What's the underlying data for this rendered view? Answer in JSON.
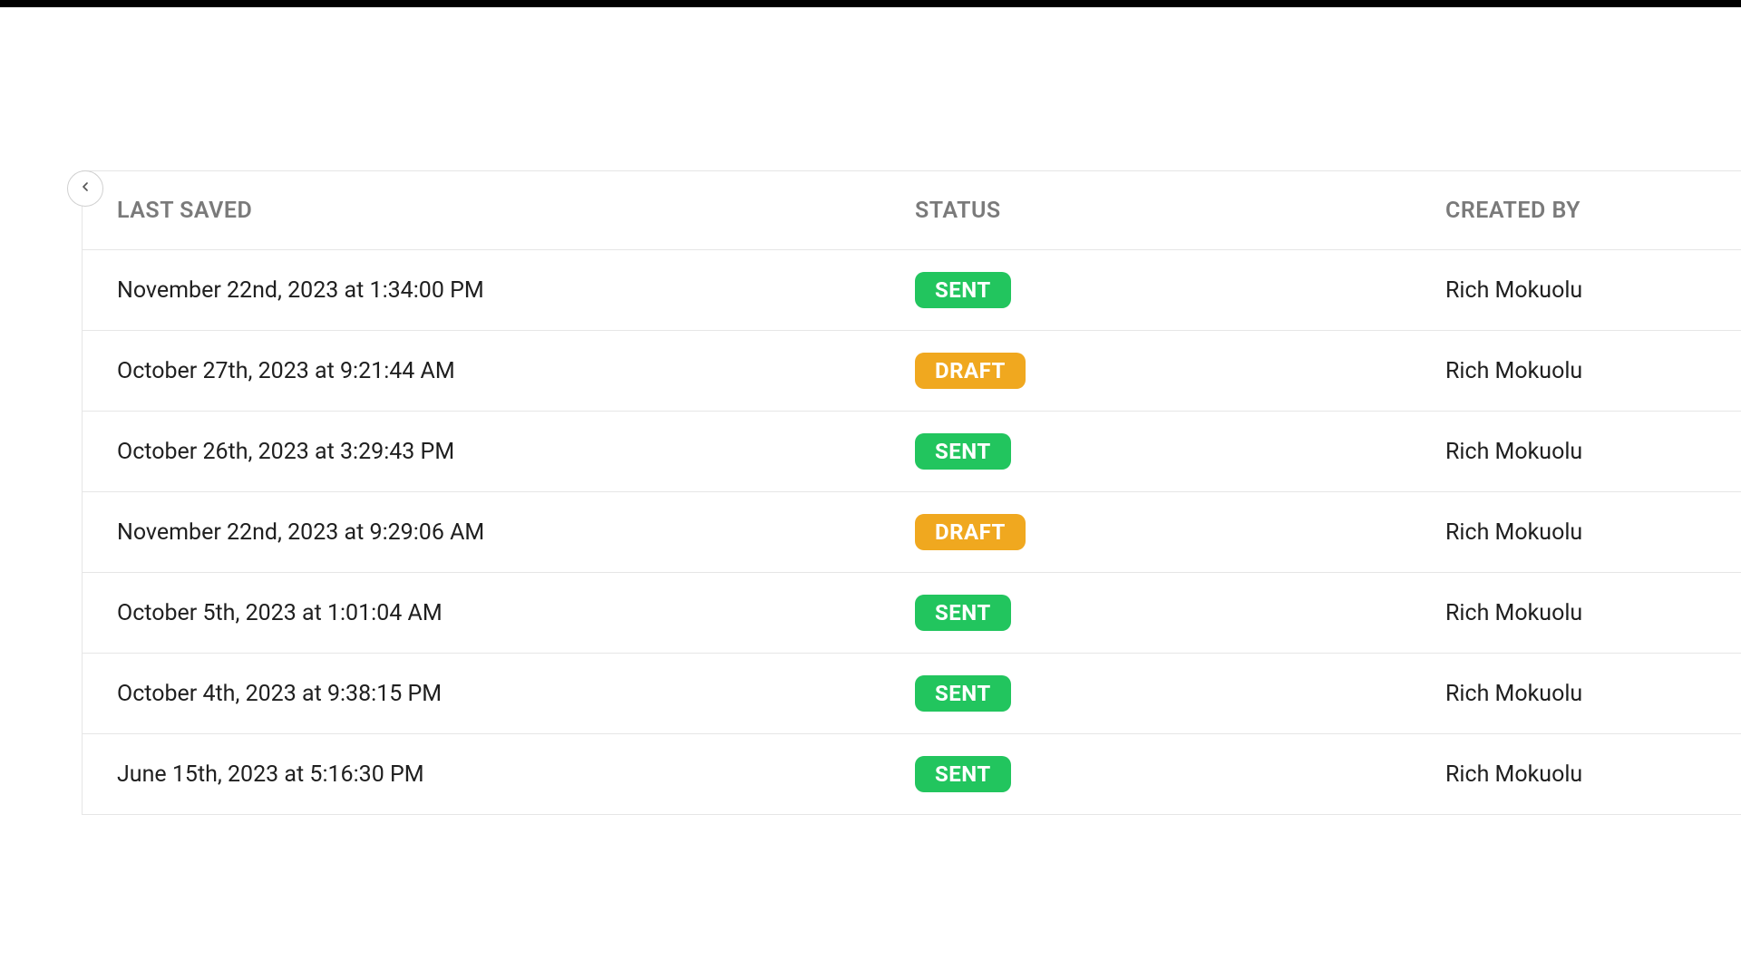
{
  "colors": {
    "topbar": "#000000",
    "border": "#e6e6e6",
    "header_text": "#7a7a7a",
    "body_text": "#1f1f1f",
    "back_btn_border": "#d0d0d0",
    "badge_text": "#ffffff",
    "status": {
      "SENT": "#22c55e",
      "DRAFT": "#f0a81f"
    }
  },
  "table": {
    "columns": {
      "last_saved": "LAST SAVED",
      "status": "STATUS",
      "created_by": "CREATED BY"
    },
    "rows": [
      {
        "last_saved": "November 22nd, 2023 at 1:34:00 PM",
        "status": "SENT",
        "created_by": "Rich Mokuolu"
      },
      {
        "last_saved": "October 27th, 2023 at 9:21:44 AM",
        "status": "DRAFT",
        "created_by": "Rich Mokuolu"
      },
      {
        "last_saved": "October 26th, 2023 at 3:29:43 PM",
        "status": "SENT",
        "created_by": "Rich Mokuolu"
      },
      {
        "last_saved": "November 22nd, 2023 at 9:29:06 AM",
        "status": "DRAFT",
        "created_by": "Rich Mokuolu"
      },
      {
        "last_saved": "October 5th, 2023 at 1:01:04 AM",
        "status": "SENT",
        "created_by": "Rich Mokuolu"
      },
      {
        "last_saved": "October 4th, 2023 at 9:38:15 PM",
        "status": "SENT",
        "created_by": "Rich Mokuolu"
      },
      {
        "last_saved": "June 15th, 2023 at 5:16:30 PM",
        "status": "SENT",
        "created_by": "Rich Mokuolu"
      }
    ]
  }
}
